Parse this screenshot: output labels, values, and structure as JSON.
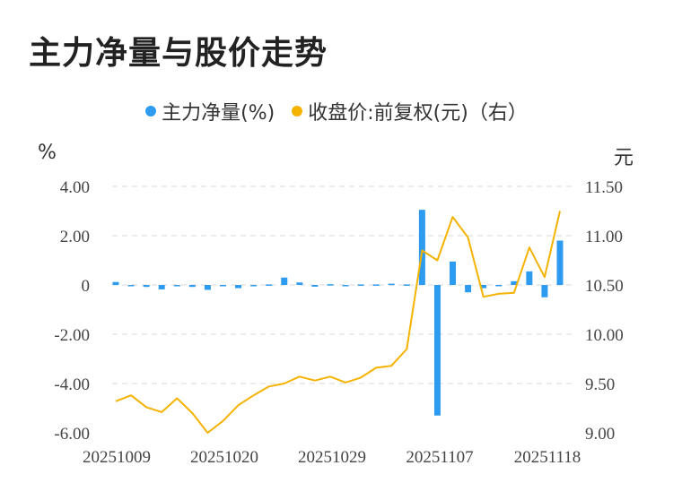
{
  "title": "主力净量与股价走势",
  "legend": {
    "net": "主力净量(%)",
    "price": "收盘价:前复权(元)（右）"
  },
  "units": {
    "left": "%",
    "right": "元"
  },
  "colors": {
    "bar": "#2d9cf0",
    "line": "#f5b300",
    "grid": "#d8d8d8"
  },
  "chart_data": {
    "type": "bar+line",
    "x_tick_labels": [
      "20251009",
      "20251020",
      "20251029",
      "20251107",
      "20251118"
    ],
    "left_axis": {
      "ylim": [
        -6,
        4
      ],
      "ticks": [
        "4.00",
        "2.00",
        "0",
        "-2.00",
        "-4.00",
        "-6.00"
      ]
    },
    "right_axis": {
      "ylim": [
        9.0,
        11.5
      ],
      "ticks": [
        "11.50",
        "11.00",
        "10.50",
        "10.00",
        "9.50",
        "9.00"
      ]
    },
    "series": [
      {
        "name": "主力净量(%)",
        "type": "bar",
        "axis": "left",
        "values": [
          0.12,
          -0.03,
          -0.08,
          -0.18,
          -0.03,
          -0.08,
          -0.2,
          -0.05,
          -0.13,
          -0.02,
          0.02,
          0.3,
          0.1,
          -0.07,
          0.03,
          -0.03,
          0.02,
          0.02,
          0.05,
          0.02,
          3.05,
          -5.3,
          0.95,
          -0.3,
          -0.13,
          -0.03,
          0.15,
          0.55,
          -0.5,
          1.8
        ]
      },
      {
        "name": "收盘价:前复权(元)（右）",
        "type": "line",
        "axis": "right",
        "values": [
          9.32,
          9.38,
          9.26,
          9.21,
          9.35,
          9.2,
          9.0,
          9.12,
          9.28,
          9.38,
          9.47,
          9.5,
          9.57,
          9.53,
          9.57,
          9.51,
          9.56,
          9.66,
          9.68,
          9.85,
          10.85,
          10.75,
          11.19,
          10.98,
          10.38,
          10.41,
          10.42,
          10.88,
          10.58,
          11.25
        ]
      }
    ]
  }
}
